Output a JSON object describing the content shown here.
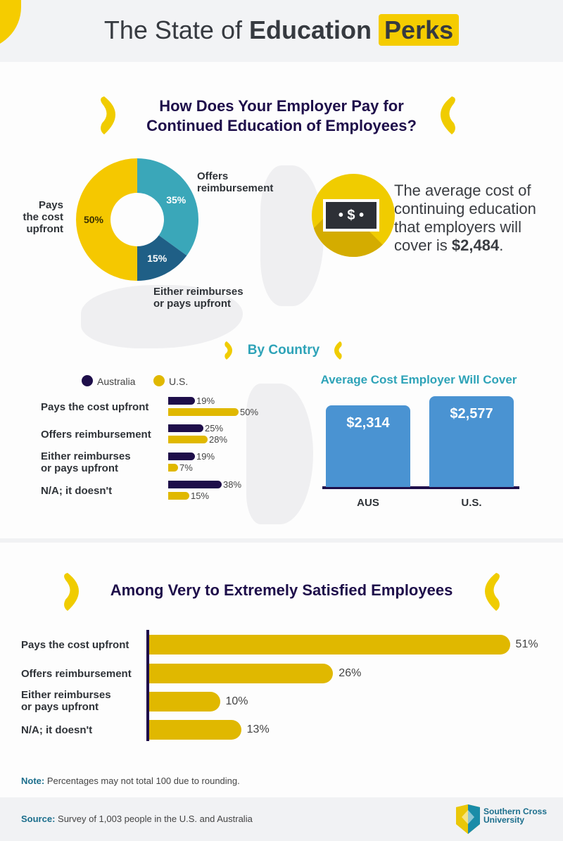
{
  "header": {
    "title_light": "The State of",
    "title_bold": "Education",
    "title_highlight": "Perks"
  },
  "section1": {
    "title_line1": "How Does Your Employer Pay for",
    "title_line2": "Continued Education of Employees?"
  },
  "chart_data": [
    {
      "type": "pie",
      "title": "How Does Your Employer Pay for Continued Education of Employees?",
      "slices": [
        {
          "label": "Offers reimbursement",
          "value": 35,
          "display": "35%",
          "color": "#3aa7b9"
        },
        {
          "label": "Either reimburses or pays upfront",
          "value": 15,
          "display": "15%",
          "color": "#1f5f86"
        },
        {
          "label": "Pays the cost upfront",
          "value": 50,
          "display": "50%",
          "color": "#f5c800"
        }
      ]
    },
    {
      "type": "bar",
      "title": "By Country",
      "orientation": "horizontal",
      "legend": [
        "Australia",
        "U.S."
      ],
      "legend_position": "top",
      "categories": [
        "Pays the cost upfront",
        "Offers reimbursement",
        "Either reimburses or pays upfront",
        "N/A; it doesn't"
      ],
      "series": [
        {
          "name": "Australia",
          "values": [
            19,
            25,
            19,
            38
          ],
          "labels": [
            "19%",
            "25%",
            "19%",
            "38%"
          ],
          "color": "#1e0e4a"
        },
        {
          "name": "U.S.",
          "values": [
            50,
            28,
            7,
            15
          ],
          "labels": [
            "50%",
            "28%",
            "7%",
            "15%"
          ],
          "color": "#e0b800"
        }
      ]
    },
    {
      "type": "bar",
      "title": "Average Cost Employer Will Cover",
      "categories": [
        "AUS",
        "U.S."
      ],
      "values": [
        2314,
        2577
      ],
      "labels": [
        "$2,314",
        "$2,577"
      ],
      "color": "#4a93d2"
    },
    {
      "type": "bar",
      "title": "Among Very to Extremely Satisfied Employees",
      "orientation": "horizontal",
      "categories": [
        "Pays the cost upfront",
        "Offers reimbursement",
        "Either reimburses or pays upfront",
        "N/A; it doesn't"
      ],
      "values": [
        51,
        26,
        10,
        13
      ],
      "labels": [
        "51%",
        "26%",
        "10%",
        "13%"
      ],
      "color": "#e0b800"
    }
  ],
  "pie_labels": {
    "offers_1": "Offers",
    "offers_2": "reimbursement",
    "pays_1": "Pays",
    "pays_2": "the cost",
    "pays_3": "upfront",
    "either_1": "Either reimburses",
    "either_2": "or pays upfront"
  },
  "avg_cost": {
    "text": "The average cost of continuing education that employers will cover is ",
    "value": "$2,484",
    "end": "."
  },
  "country": {
    "title": "By Country",
    "legend_au": "Australia",
    "legend_us": "U.S.",
    "cat_labels": [
      "Pays the cost upfront",
      "Offers reimbursement",
      "Either reimburses\nor pays upfront",
      "N/A; it doesn't"
    ]
  },
  "satisfied": {
    "cat_labels": [
      "Pays the cost upfront",
      "Offers reimbursement",
      "Either reimburses\nor pays upfront",
      "N/A; it doesn't"
    ]
  },
  "note": {
    "label": "Note:",
    "text": " Percentages may not total 100 due to rounding."
  },
  "source": {
    "label": "Source:",
    "text": " Survey of 1,003 people in the U.S. and Australia"
  },
  "logo": {
    "line1": "Southern Cross",
    "line2": "University"
  }
}
